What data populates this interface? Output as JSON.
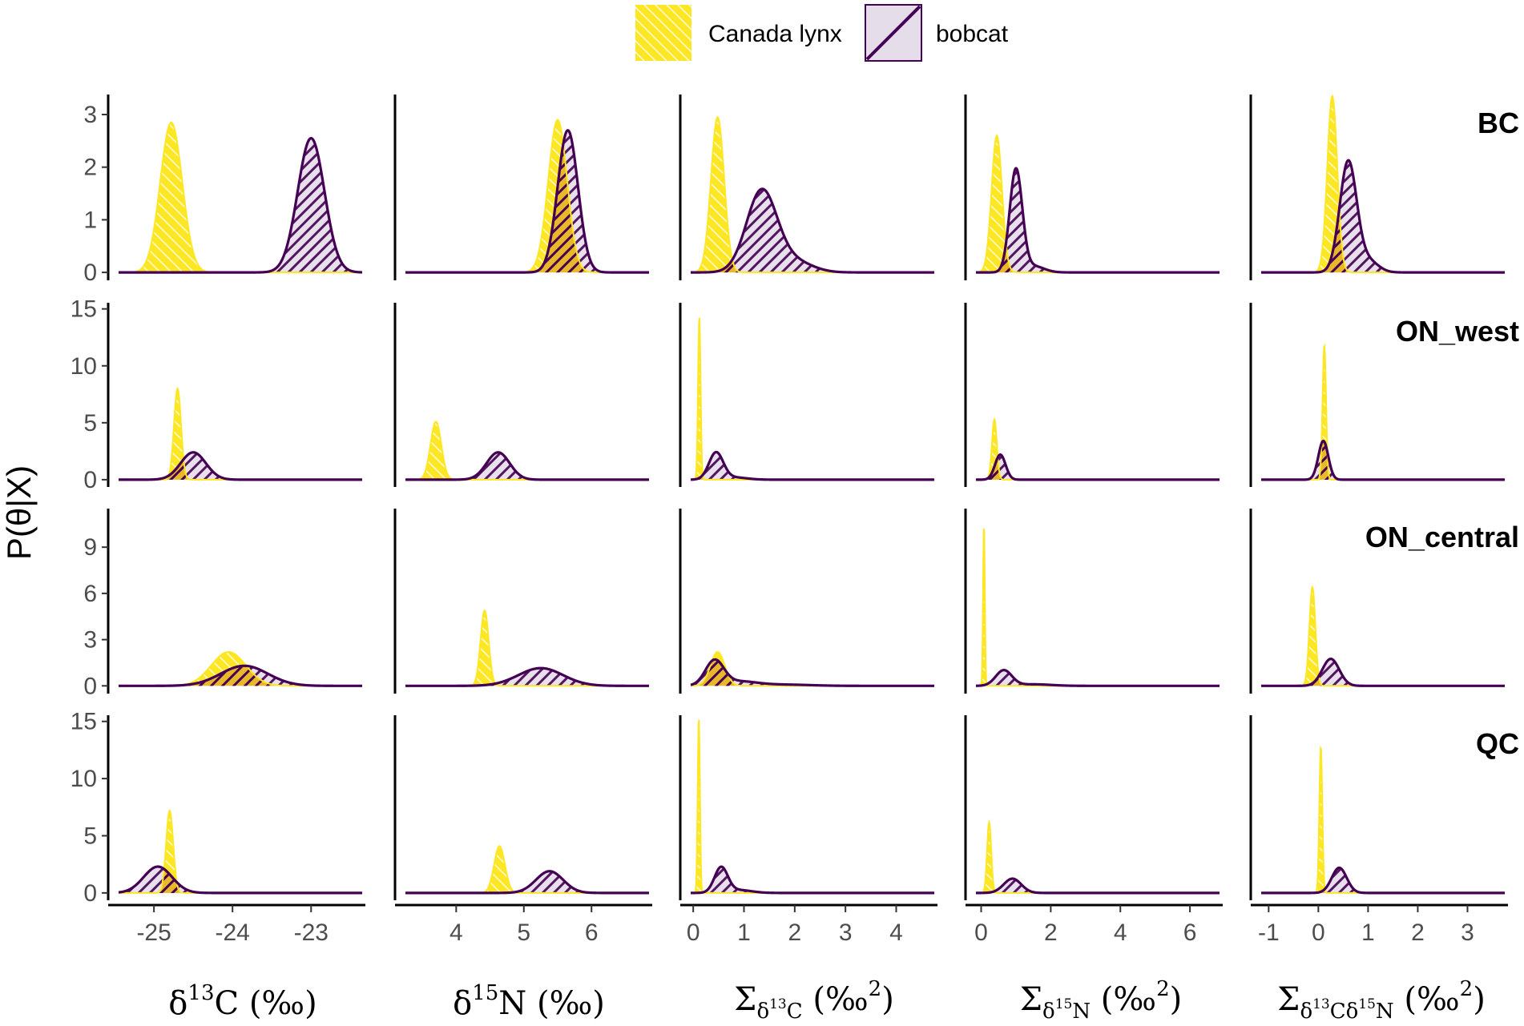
{
  "legend": {
    "items": [
      {
        "label": "Canada lynx",
        "color": "#FDE725"
      },
      {
        "label": "bobcat",
        "color": "#440154",
        "fill": "#E6DDEB"
      }
    ]
  },
  "y_axis_label": "P(θ|X)",
  "x_axis_labels": [
    {
      "main": "δ",
      "sup": "13",
      "tail": "C  (‰)"
    },
    {
      "main": "δ",
      "sup": "15",
      "tail": "N  (‰)"
    },
    {
      "sym": "Σ",
      "sub_pre": "δ",
      "sub_sup": "13",
      "sub_post": "C",
      "unit": " (‰",
      "unit_sup": "2",
      "close": ")"
    },
    {
      "sym": "Σ",
      "sub_pre": "δ",
      "sub_sup": "15",
      "sub_post": "N",
      "unit": " (‰",
      "unit_sup": "2",
      "close": ")"
    },
    {
      "sym": "Σ",
      "sub_pre": "δ",
      "sub_sup": "13",
      "sub_post": "Cδ",
      "sub_sup2": "15",
      "sub_post2": "N",
      "unit": " (‰",
      "unit_sup": "2",
      "close": ")"
    }
  ],
  "chart_data": {
    "type": "area",
    "title": "",
    "ylabel": "P(θ|X)",
    "series_names": [
      "Canada lynx",
      "bobcat"
    ],
    "columns": [
      {
        "id": "d13C",
        "xlim": [
          -25.45,
          -22.35
        ],
        "ticks": [
          -25,
          -24,
          -23
        ],
        "tick_labels": [
          "-25",
          "-24",
          "-23"
        ]
      },
      {
        "id": "d15N",
        "xlim": [
          3.25,
          6.85
        ],
        "ticks": [
          4,
          5,
          6
        ],
        "tick_labels": [
          "4",
          "5",
          "6"
        ]
      },
      {
        "id": "Sd13C",
        "xlim": [
          -0.05,
          4.75
        ],
        "ticks": [
          0,
          1,
          2,
          3,
          4
        ],
        "tick_labels": [
          "0",
          "1",
          "2",
          "3",
          "4"
        ]
      },
      {
        "id": "Sd15N",
        "xlim": [
          -0.15,
          6.85
        ],
        "ticks": [
          0,
          2,
          4,
          6
        ],
        "tick_labels": [
          "0",
          "2",
          "4",
          "6"
        ]
      },
      {
        "id": "Sd13Cd15N",
        "xlim": [
          -1.15,
          3.75
        ],
        "ticks": [
          -1,
          0,
          1,
          2,
          3
        ],
        "tick_labels": [
          "-1",
          "0",
          "1",
          "2",
          "3"
        ]
      }
    ],
    "rows": [
      {
        "region": "BC",
        "ylim": [
          -0.12,
          3.35
        ],
        "yticks": [
          0,
          1,
          2,
          3
        ],
        "ytick_labels": [
          "0",
          "1",
          "2",
          "3"
        ],
        "panels": [
          {
            "lynx": [
              {
                "mu": -24.78,
                "sd": 0.14,
                "peak": 2.85
              }
            ],
            "bobcat": [
              {
                "mu": -23.0,
                "sd": 0.17,
                "peak": 2.55
              }
            ]
          },
          {
            "lynx": [
              {
                "mu": 5.5,
                "sd": 0.14,
                "peak": 2.9
              }
            ],
            "bobcat": [
              {
                "mu": 5.65,
                "sd": 0.15,
                "peak": 2.7
              }
            ]
          },
          {
            "lynx": [
              {
                "mu": 0.48,
                "sd": 0.13,
                "peak": 2.95
              }
            ],
            "bobcat": [
              {
                "mu": 1.35,
                "sd": 0.3,
                "peak": 1.55
              },
              {
                "mu": 2.0,
                "sd": 0.35,
                "peak": 0.2
              }
            ]
          },
          {
            "lynx": [
              {
                "mu": 0.45,
                "sd": 0.15,
                "peak": 2.6
              }
            ],
            "bobcat": [
              {
                "mu": 1.0,
                "sd": 0.18,
                "peak": 1.95
              },
              {
                "mu": 1.5,
                "sd": 0.3,
                "peak": 0.12
              }
            ]
          },
          {
            "lynx": [
              {
                "mu": 0.28,
                "sd": 0.1,
                "peak": 3.35
              }
            ],
            "bobcat": [
              {
                "mu": 0.6,
                "sd": 0.17,
                "peak": 2.1
              },
              {
                "mu": 1.0,
                "sd": 0.2,
                "peak": 0.22
              }
            ]
          }
        ]
      },
      {
        "region": "ON_west",
        "ylim": [
          -0.5,
          15.4
        ],
        "yticks": [
          0,
          5,
          10,
          15
        ],
        "ytick_labels": [
          "0",
          "5",
          "10",
          "15"
        ],
        "panels": [
          {
            "lynx": [
              {
                "mu": -24.7,
                "sd": 0.045,
                "peak": 8.0
              }
            ],
            "bobcat": [
              {
                "mu": -24.5,
                "sd": 0.16,
                "peak": 2.4
              }
            ]
          },
          {
            "lynx": [
              {
                "mu": 3.7,
                "sd": 0.08,
                "peak": 5.1
              }
            ],
            "bobcat": [
              {
                "mu": 4.62,
                "sd": 0.17,
                "peak": 2.4
              }
            ]
          },
          {
            "lynx": [
              {
                "mu": 0.12,
                "sd": 0.025,
                "peak": 14.3
              }
            ],
            "bobcat": [
              {
                "mu": 0.45,
                "sd": 0.14,
                "peak": 2.35
              },
              {
                "mu": 0.8,
                "sd": 0.25,
                "peak": 0.2
              }
            ]
          },
          {
            "lynx": [
              {
                "mu": 0.38,
                "sd": 0.07,
                "peak": 5.3
              }
            ],
            "bobcat": [
              {
                "mu": 0.55,
                "sd": 0.15,
                "peak": 2.2
              }
            ]
          },
          {
            "lynx": [
              {
                "mu": 0.12,
                "sd": 0.035,
                "peak": 11.8
              }
            ],
            "bobcat": [
              {
                "mu": 0.1,
                "sd": 0.1,
                "peak": 3.4
              }
            ]
          }
        ]
      },
      {
        "region": "ON_central",
        "ylim": [
          -0.4,
          11.4
        ],
        "yticks": [
          0,
          3,
          6,
          9
        ],
        "ytick_labels": [
          "0",
          "3",
          "6",
          "9"
        ],
        "panels": [
          {
            "lynx": [
              {
                "mu": -24.05,
                "sd": 0.22,
                "peak": 2.2
              }
            ],
            "bobcat": [
              {
                "mu": -23.85,
                "sd": 0.3,
                "peak": 1.3
              }
            ]
          },
          {
            "lynx": [
              {
                "mu": 4.42,
                "sd": 0.06,
                "peak": 4.9
              }
            ],
            "bobcat": [
              {
                "mu": 5.25,
                "sd": 0.33,
                "peak": 1.15
              }
            ]
          },
          {
            "lynx": [
              {
                "mu": 0.48,
                "sd": 0.14,
                "peak": 2.2
              }
            ],
            "bobcat": [
              {
                "mu": 0.42,
                "sd": 0.18,
                "peak": 1.6
              },
              {
                "mu": 0.9,
                "sd": 0.35,
                "peak": 0.28
              },
              {
                "mu": 1.8,
                "sd": 0.5,
                "peak": 0.08
              }
            ]
          },
          {
            "lynx": [
              {
                "mu": 0.08,
                "sd": 0.025,
                "peak": 10.5
              }
            ],
            "bobcat": [
              {
                "mu": 0.65,
                "sd": 0.23,
                "peak": 1.0
              },
              {
                "mu": 1.5,
                "sd": 0.5,
                "peak": 0.1
              }
            ]
          },
          {
            "lynx": [
              {
                "mu": -0.12,
                "sd": 0.06,
                "peak": 6.4
              }
            ],
            "bobcat": [
              {
                "mu": 0.25,
                "sd": 0.17,
                "peak": 1.75
              }
            ]
          }
        ]
      },
      {
        "region": "QC",
        "ylim": [
          -0.5,
          15.4
        ],
        "yticks": [
          0,
          5,
          10,
          15
        ],
        "ytick_labels": [
          "0",
          "5",
          "10",
          "15"
        ],
        "panels": [
          {
            "lynx": [
              {
                "mu": -24.8,
                "sd": 0.045,
                "peak": 7.2
              }
            ],
            "bobcat": [
              {
                "mu": -24.95,
                "sd": 0.18,
                "peak": 2.3
              }
            ]
          },
          {
            "lynx": [
              {
                "mu": 4.64,
                "sd": 0.08,
                "peak": 4.1
              }
            ],
            "bobcat": [
              {
                "mu": 5.38,
                "sd": 0.2,
                "peak": 1.9
              }
            ]
          },
          {
            "lynx": [
              {
                "mu": 0.11,
                "sd": 0.022,
                "peak": 15.3
              }
            ],
            "bobcat": [
              {
                "mu": 0.55,
                "sd": 0.13,
                "peak": 2.2
              },
              {
                "mu": 0.9,
                "sd": 0.25,
                "peak": 0.25
              }
            ]
          },
          {
            "lynx": [
              {
                "mu": 0.23,
                "sd": 0.06,
                "peak": 6.2
              }
            ],
            "bobcat": [
              {
                "mu": 0.9,
                "sd": 0.25,
                "peak": 1.25
              }
            ]
          },
          {
            "lynx": [
              {
                "mu": 0.05,
                "sd": 0.03,
                "peak": 12.8
              }
            ],
            "bobcat": [
              {
                "mu": 0.42,
                "sd": 0.15,
                "peak": 2.2
              }
            ]
          }
        ]
      }
    ]
  }
}
